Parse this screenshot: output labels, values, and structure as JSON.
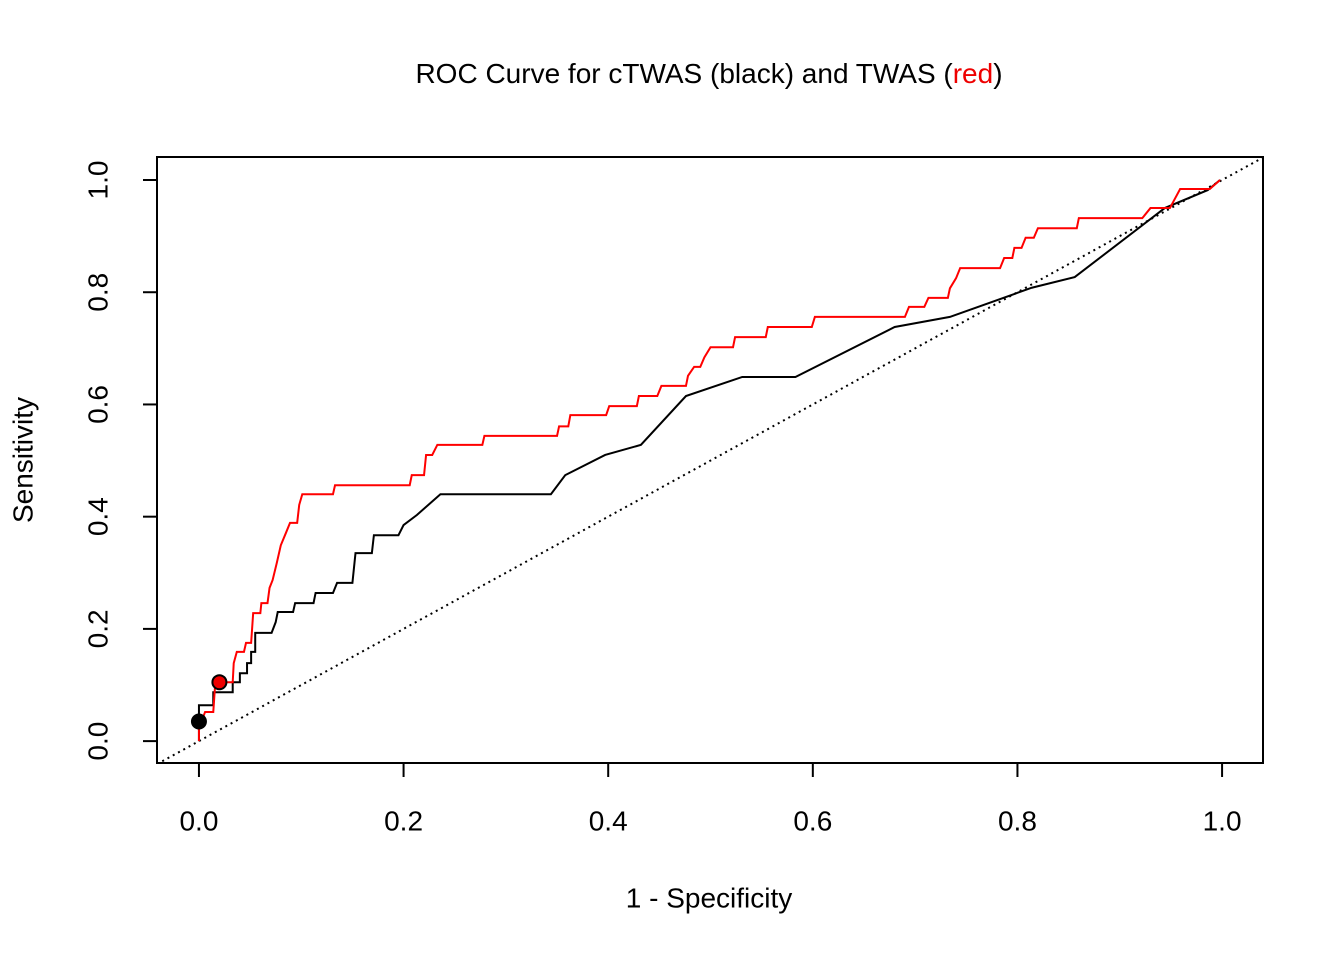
{
  "chart_data": {
    "type": "line",
    "title": [
      {
        "text": "ROC Curve for cTWAS (black) and TWAS (",
        "color": "#000000"
      },
      {
        "text": "red",
        "color": "#ee0000"
      },
      {
        "text": ")",
        "color": "#000000"
      }
    ],
    "xlabel": "1 - Specificity",
    "ylabel": "Sensitivity",
    "xlim": [
      -0.041,
      1.04
    ],
    "ylim": [
      -0.039,
      1.041
    ],
    "xticks": [
      {
        "value": 0,
        "label": "0.0"
      },
      0.2,
      0.4,
      0.6,
      0.8,
      {
        "value": 1,
        "label": "1.0"
      }
    ],
    "yticks": [
      {
        "value": 0,
        "label": "0.0"
      },
      0.2,
      0.4,
      0.6,
      0.8,
      {
        "value": 1,
        "label": "1.0"
      }
    ],
    "reference_line": {
      "intercept": 0,
      "slope": 1,
      "color": "#000000",
      "style": "dotted"
    },
    "series": [
      {
        "color": "#000000",
        "x": [
          0,
          0,
          0.014,
          0.014,
          0.033,
          0.033,
          0.04,
          0.04,
          0.047,
          0.047,
          0.051,
          0.051,
          0.055,
          0.055,
          0.071,
          0.075,
          0.077,
          0.092,
          0.094,
          0.112,
          0.114,
          0.131,
          0.135,
          0.15,
          0.153,
          0.169,
          0.171,
          0.195,
          0.2,
          0.213,
          0.236,
          0.344,
          0.358,
          0.397,
          0.432,
          0.476,
          0.531,
          0.583,
          0.68,
          0.734,
          0.814,
          0.856,
          0.944,
          0.986,
          0.998
        ],
        "values": [
          0,
          0.064,
          0.064,
          0.087,
          0.087,
          0.105,
          0.105,
          0.121,
          0.121,
          0.139,
          0.139,
          0.159,
          0.159,
          0.193,
          0.193,
          0.212,
          0.23,
          0.23,
          0.246,
          0.246,
          0.264,
          0.264,
          0.282,
          0.282,
          0.335,
          0.335,
          0.367,
          0.367,
          0.385,
          0.403,
          0.44,
          0.44,
          0.474,
          0.51,
          0.528,
          0.615,
          0.649,
          0.649,
          0.738,
          0.756,
          0.808,
          0.827,
          0.95,
          0.982,
          1.0
        ]
      },
      {
        "color": "#ff0000",
        "x": [
          0,
          0,
          0.006,
          0.014,
          0.016,
          0.033,
          0.034,
          0.037,
          0.044,
          0.046,
          0.051,
          0.053,
          0.06,
          0.061,
          0.067,
          0.069,
          0.072,
          0.076,
          0.08,
          0.085,
          0.089,
          0.096,
          0.098,
          0.101,
          0.131,
          0.133,
          0.206,
          0.208,
          0.22,
          0.222,
          0.228,
          0.233,
          0.277,
          0.279,
          0.35,
          0.352,
          0.361,
          0.363,
          0.398,
          0.401,
          0.428,
          0.43,
          0.448,
          0.452,
          0.476,
          0.478,
          0.484,
          0.49,
          0.494,
          0.5,
          0.522,
          0.524,
          0.554,
          0.556,
          0.599,
          0.602,
          0.69,
          0.694,
          0.709,
          0.713,
          0.732,
          0.734,
          0.74,
          0.744,
          0.783,
          0.787,
          0.795,
          0.797,
          0.804,
          0.808,
          0.816,
          0.82,
          0.858,
          0.86,
          0.922,
          0.93,
          0.949,
          0.959,
          0.988,
          0.998
        ],
        "values": [
          0,
          0.023,
          0.052,
          0.052,
          0.105,
          0.105,
          0.139,
          0.159,
          0.159,
          0.175,
          0.175,
          0.228,
          0.228,
          0.246,
          0.246,
          0.273,
          0.287,
          0.317,
          0.349,
          0.371,
          0.389,
          0.389,
          0.421,
          0.44,
          0.44,
          0.456,
          0.456,
          0.474,
          0.474,
          0.51,
          0.51,
          0.528,
          0.528,
          0.544,
          0.544,
          0.561,
          0.561,
          0.581,
          0.581,
          0.597,
          0.597,
          0.615,
          0.615,
          0.633,
          0.633,
          0.651,
          0.667,
          0.667,
          0.684,
          0.702,
          0.702,
          0.72,
          0.72,
          0.738,
          0.738,
          0.756,
          0.756,
          0.774,
          0.774,
          0.79,
          0.79,
          0.807,
          0.825,
          0.843,
          0.843,
          0.861,
          0.861,
          0.879,
          0.879,
          0.897,
          0.897,
          0.914,
          0.914,
          0.932,
          0.932,
          0.95,
          0.95,
          0.984,
          0.984,
          1.0
        ]
      }
    ],
    "points": [
      {
        "x": 0,
        "y": 0.035,
        "color": "#000000"
      },
      {
        "x": 0.02,
        "y": 0.105,
        "color": "#ee0000"
      }
    ]
  }
}
